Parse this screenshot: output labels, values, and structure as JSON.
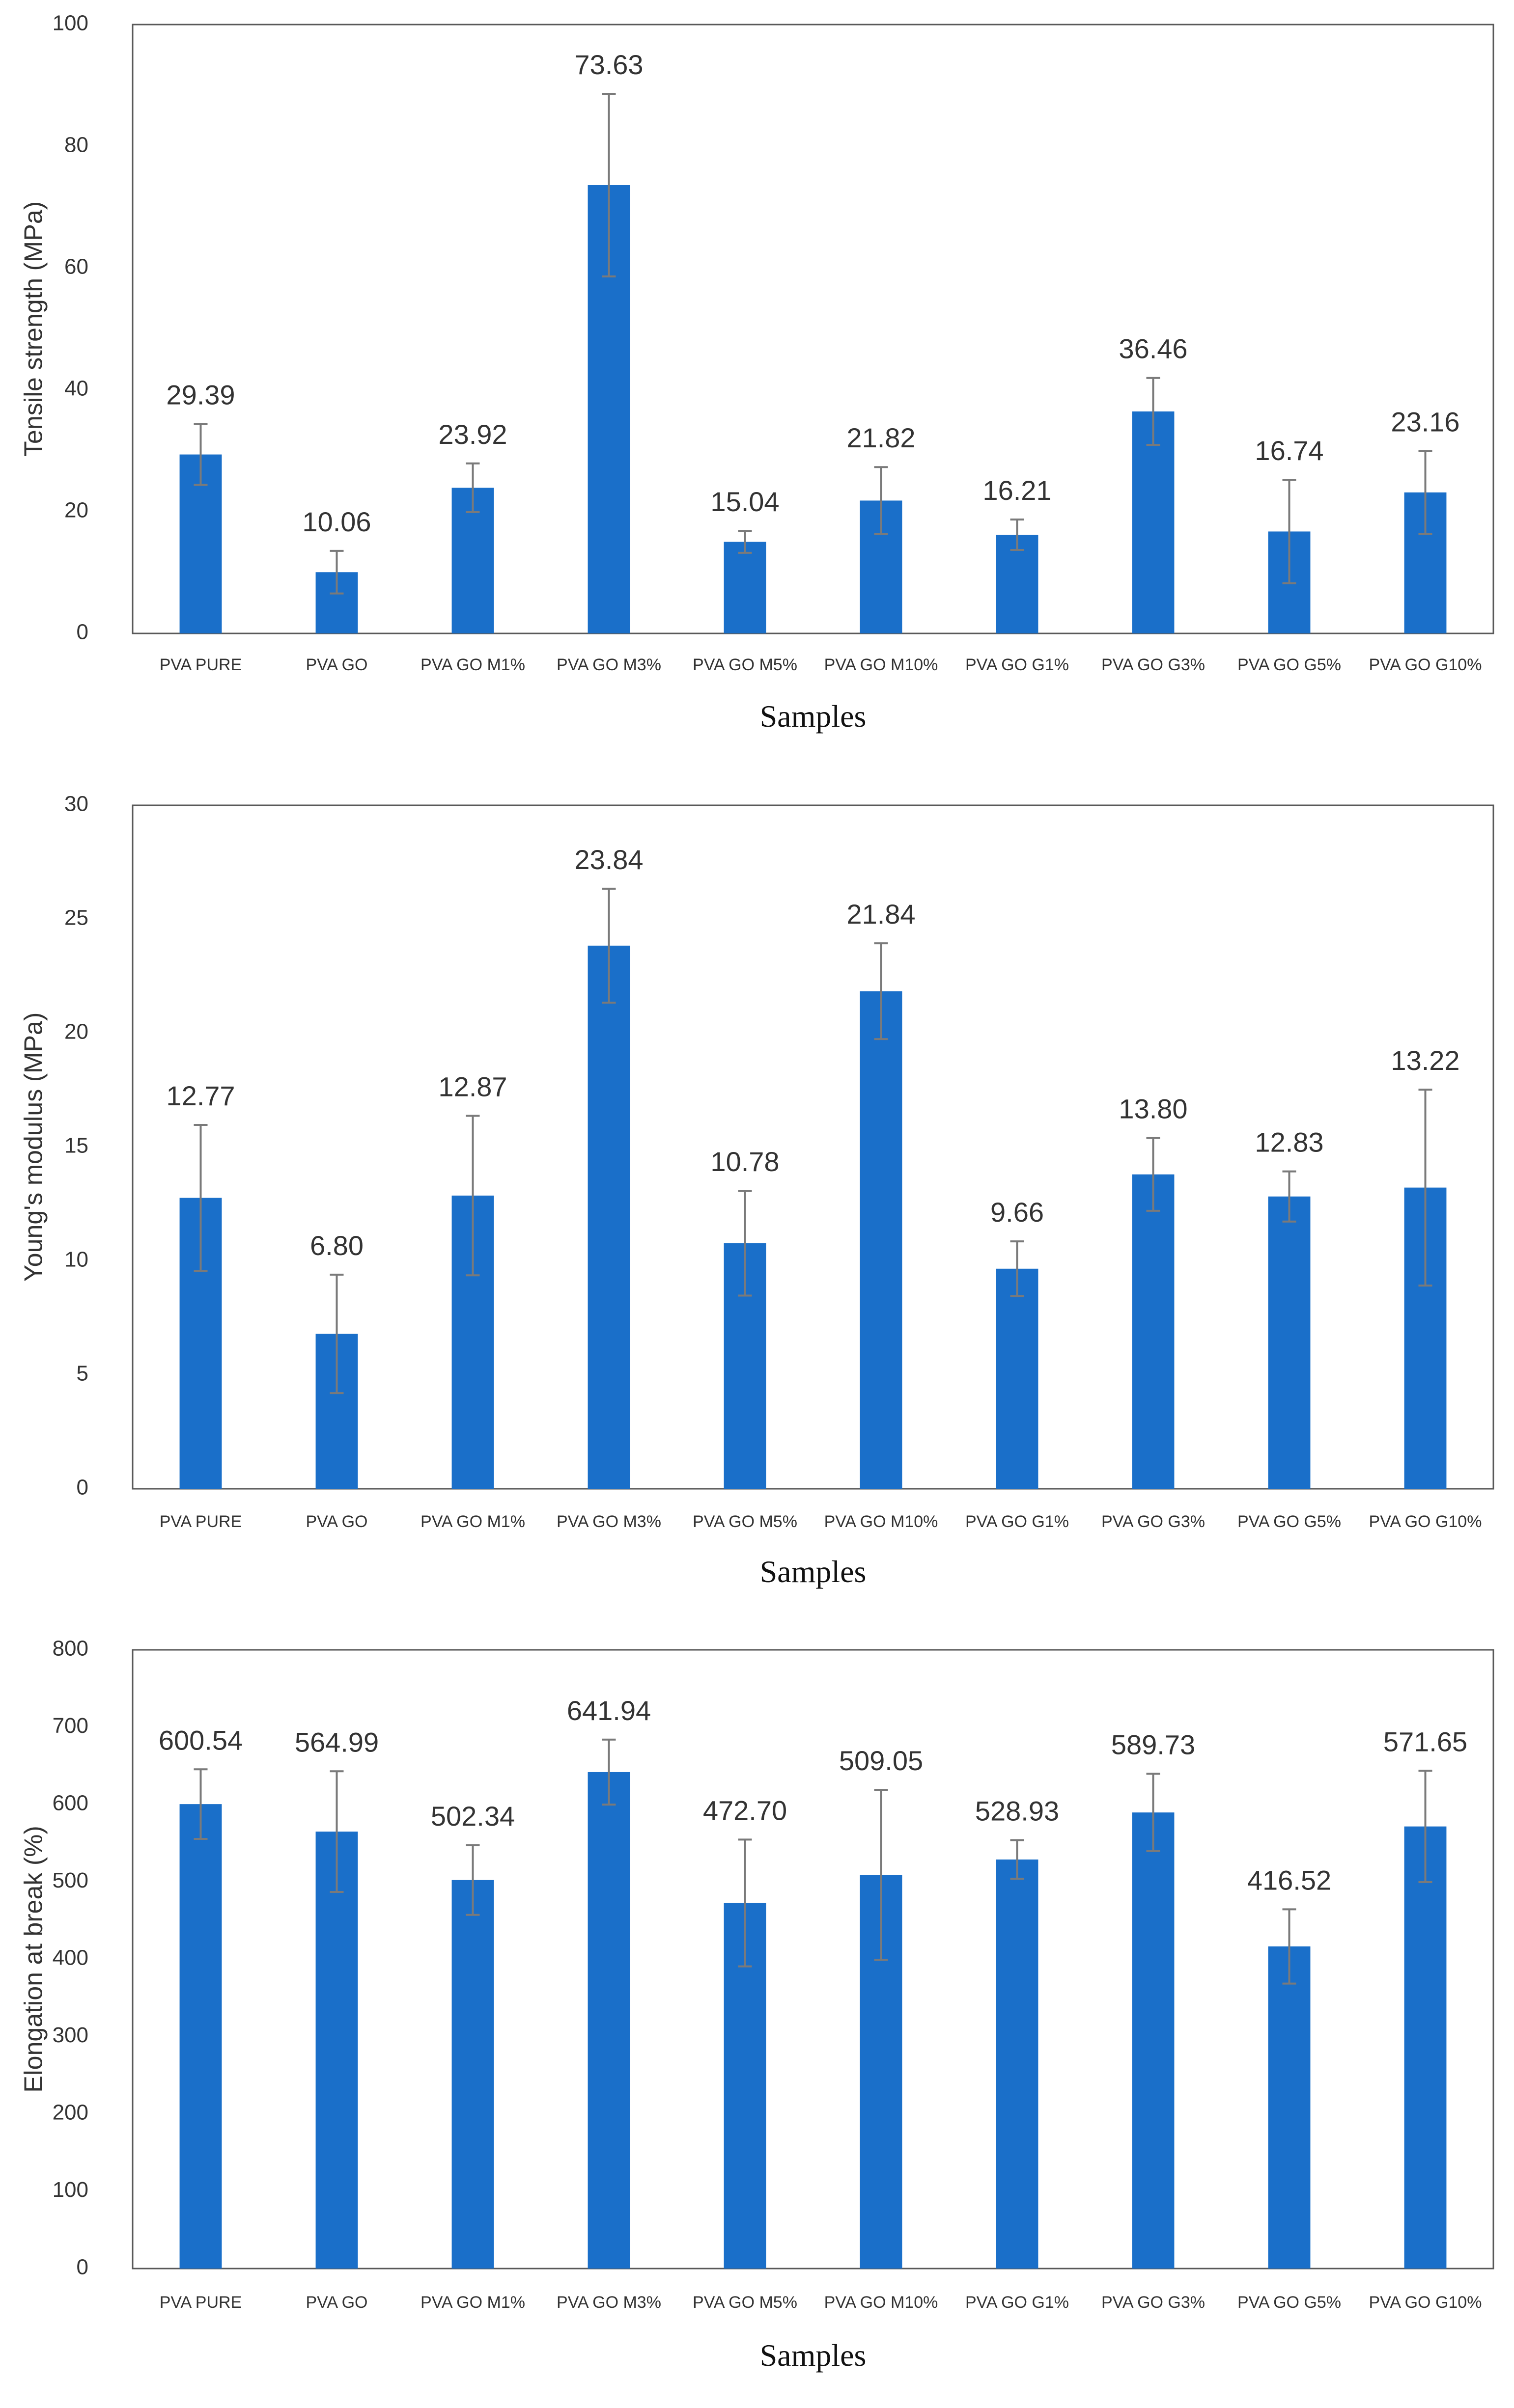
{
  "chart_data": [
    {
      "type": "bar",
      "title": "",
      "xlabel": "Samples",
      "ylabel": "Tensile strength (MPa)",
      "ylim": [
        0,
        100
      ],
      "yticks": [
        0,
        20,
        40,
        60,
        80,
        100
      ],
      "grid": false,
      "bar_color": "#1a6fc9",
      "categories": [
        "PVA PURE",
        "PVA GO",
        "PVA GO M1%",
        "PVA GO M3%",
        "PVA GO M5%",
        "PVA GO M10%",
        "PVA GO G1%",
        "PVA GO G3%",
        "PVA GO G5%",
        "PVA GO G10%"
      ],
      "values": [
        29.39,
        10.06,
        23.92,
        73.63,
        15.04,
        21.82,
        16.21,
        36.46,
        16.74,
        23.16
      ],
      "value_labels": [
        "29.39",
        "10.06",
        "23.92",
        "73.63",
        "15.04",
        "21.82",
        "16.21",
        "36.46",
        "16.74",
        "23.16"
      ],
      "errors": [
        5.0,
        3.5,
        4.0,
        15.0,
        1.8,
        5.5,
        2.5,
        5.5,
        8.5,
        6.8
      ]
    },
    {
      "type": "bar",
      "title": "",
      "xlabel": "Samples",
      "ylabel": "Young's modulus (MPa)",
      "ylim": [
        0,
        30
      ],
      "yticks": [
        0,
        5,
        10,
        15,
        20,
        25,
        30
      ],
      "grid": false,
      "bar_color": "#1a6fc9",
      "categories": [
        "PVA PURE",
        "PVA GO",
        "PVA GO M1%",
        "PVA GO M3%",
        "PVA GO M5%",
        "PVA GO M10%",
        "PVA GO G1%",
        "PVA GO G3%",
        "PVA GO G5%",
        "PVA GO G10%"
      ],
      "values": [
        12.77,
        6.8,
        12.87,
        23.84,
        10.78,
        21.84,
        9.66,
        13.8,
        12.83,
        13.22
      ],
      "value_labels": [
        "12.77",
        "6.80",
        "12.87",
        "23.84",
        "10.78",
        "21.84",
        "9.66",
        "13.80",
        "12.83",
        "13.22"
      ],
      "errors": [
        3.2,
        2.6,
        3.5,
        2.5,
        2.3,
        2.1,
        1.2,
        1.6,
        1.1,
        4.3
      ]
    },
    {
      "type": "bar",
      "title": "",
      "xlabel": "Samples",
      "ylabel": "Elongation at break (%)",
      "ylim": [
        0,
        800
      ],
      "yticks": [
        0,
        100,
        200,
        300,
        400,
        500,
        600,
        700,
        800
      ],
      "grid": false,
      "bar_color": "#1a6fc9",
      "categories": [
        "PVA PURE",
        "PVA GO",
        "PVA GO M1%",
        "PVA GO M3%",
        "PVA GO M5%",
        "PVA GO M10%",
        "PVA GO G1%",
        "PVA GO G3%",
        "PVA GO G5%",
        "PVA GO G10%"
      ],
      "values": [
        600.54,
        564.99,
        502.34,
        641.94,
        472.7,
        509.05,
        528.93,
        589.73,
        416.52,
        571.65
      ],
      "value_labels": [
        "600.54",
        "564.99",
        "502.34",
        "641.94",
        "472.70",
        "509.05",
        "528.93",
        "589.73",
        "416.52",
        "571.65"
      ],
      "errors": [
        45,
        78,
        45,
        42,
        82,
        110,
        25,
        50,
        48,
        72
      ]
    }
  ]
}
